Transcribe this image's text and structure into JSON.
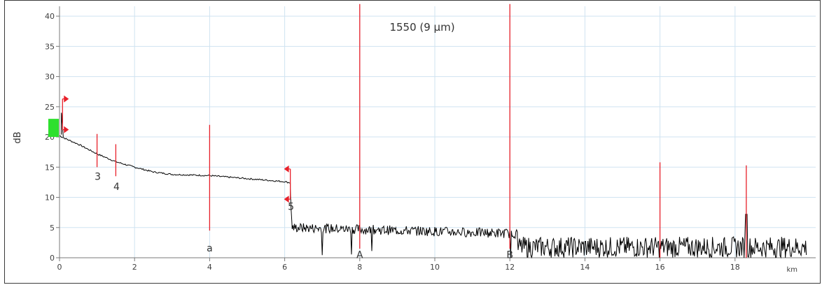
{
  "chart_data": {
    "type": "line",
    "title": "1550 (9 µm)",
    "xlabel": "km",
    "ylabel": "dB",
    "xlim": [
      0,
      20
    ],
    "ylim": [
      0,
      42
    ],
    "x_ticks": [
      0,
      2,
      4,
      6,
      8,
      10,
      12,
      14,
      16,
      18
    ],
    "y_ticks": [
      0,
      5,
      10,
      15,
      20,
      25,
      30,
      35,
      40
    ],
    "grid": true,
    "series": [
      {
        "color": "#000000",
        "trace": [
          [
            0.0,
            20.2
          ],
          [
            0.2,
            19.6
          ],
          [
            0.5,
            18.8
          ],
          [
            1.0,
            17.2
          ],
          [
            1.5,
            15.9
          ],
          [
            2.0,
            15.0
          ],
          [
            2.5,
            14.2
          ],
          [
            3.0,
            13.8
          ],
          [
            4.0,
            13.6
          ],
          [
            5.0,
            13.1
          ],
          [
            6.0,
            12.6
          ],
          [
            6.15,
            12.4
          ]
        ],
        "noise_after_step": {
          "step_at": 6.15,
          "plateau_from": 6.2,
          "plateau_to": 12.2,
          "plateau_start": 5.0,
          "plateau_end": 4.0,
          "floor_from": 12.2,
          "floor_to": 19.9,
          "floor_max": 3.5
        }
      }
    ],
    "event_markers": [
      {
        "x": 1.0,
        "y_low": 15.0,
        "y_high": 20.5,
        "label": "3",
        "label_y": 13.5
      },
      {
        "x": 1.5,
        "y_low": 13.5,
        "y_high": 18.8,
        "label": "4",
        "label_y": 11.8
      },
      {
        "x": 6.15,
        "label": "5",
        "label_y": 8.5
      }
    ],
    "cursor_markers": [
      {
        "x": 4.0,
        "y_low": 4.5,
        "y_high": 22.0,
        "label": "a",
        "label_y": 1.6
      },
      {
        "x": 8.0,
        "y_low": 1.5,
        "y_high": 42.0,
        "label": "A",
        "label_y": 0.5
      },
      {
        "x": 12.0,
        "y_low": 1.5,
        "y_high": 42.0,
        "label": "B",
        "label_y": 0.5
      },
      {
        "x": 16.0,
        "y_low": 0.0,
        "y_high": 15.8,
        "label": ""
      },
      {
        "x": 18.3,
        "y_low": 0.0,
        "y_high": 15.3,
        "label": ""
      }
    ],
    "colors": {
      "trace": "#000000",
      "marker": "#e8202a",
      "grid": "#cfe3f1",
      "axis": "#7a7a7a",
      "launch_block": "#2ee02e"
    }
  }
}
